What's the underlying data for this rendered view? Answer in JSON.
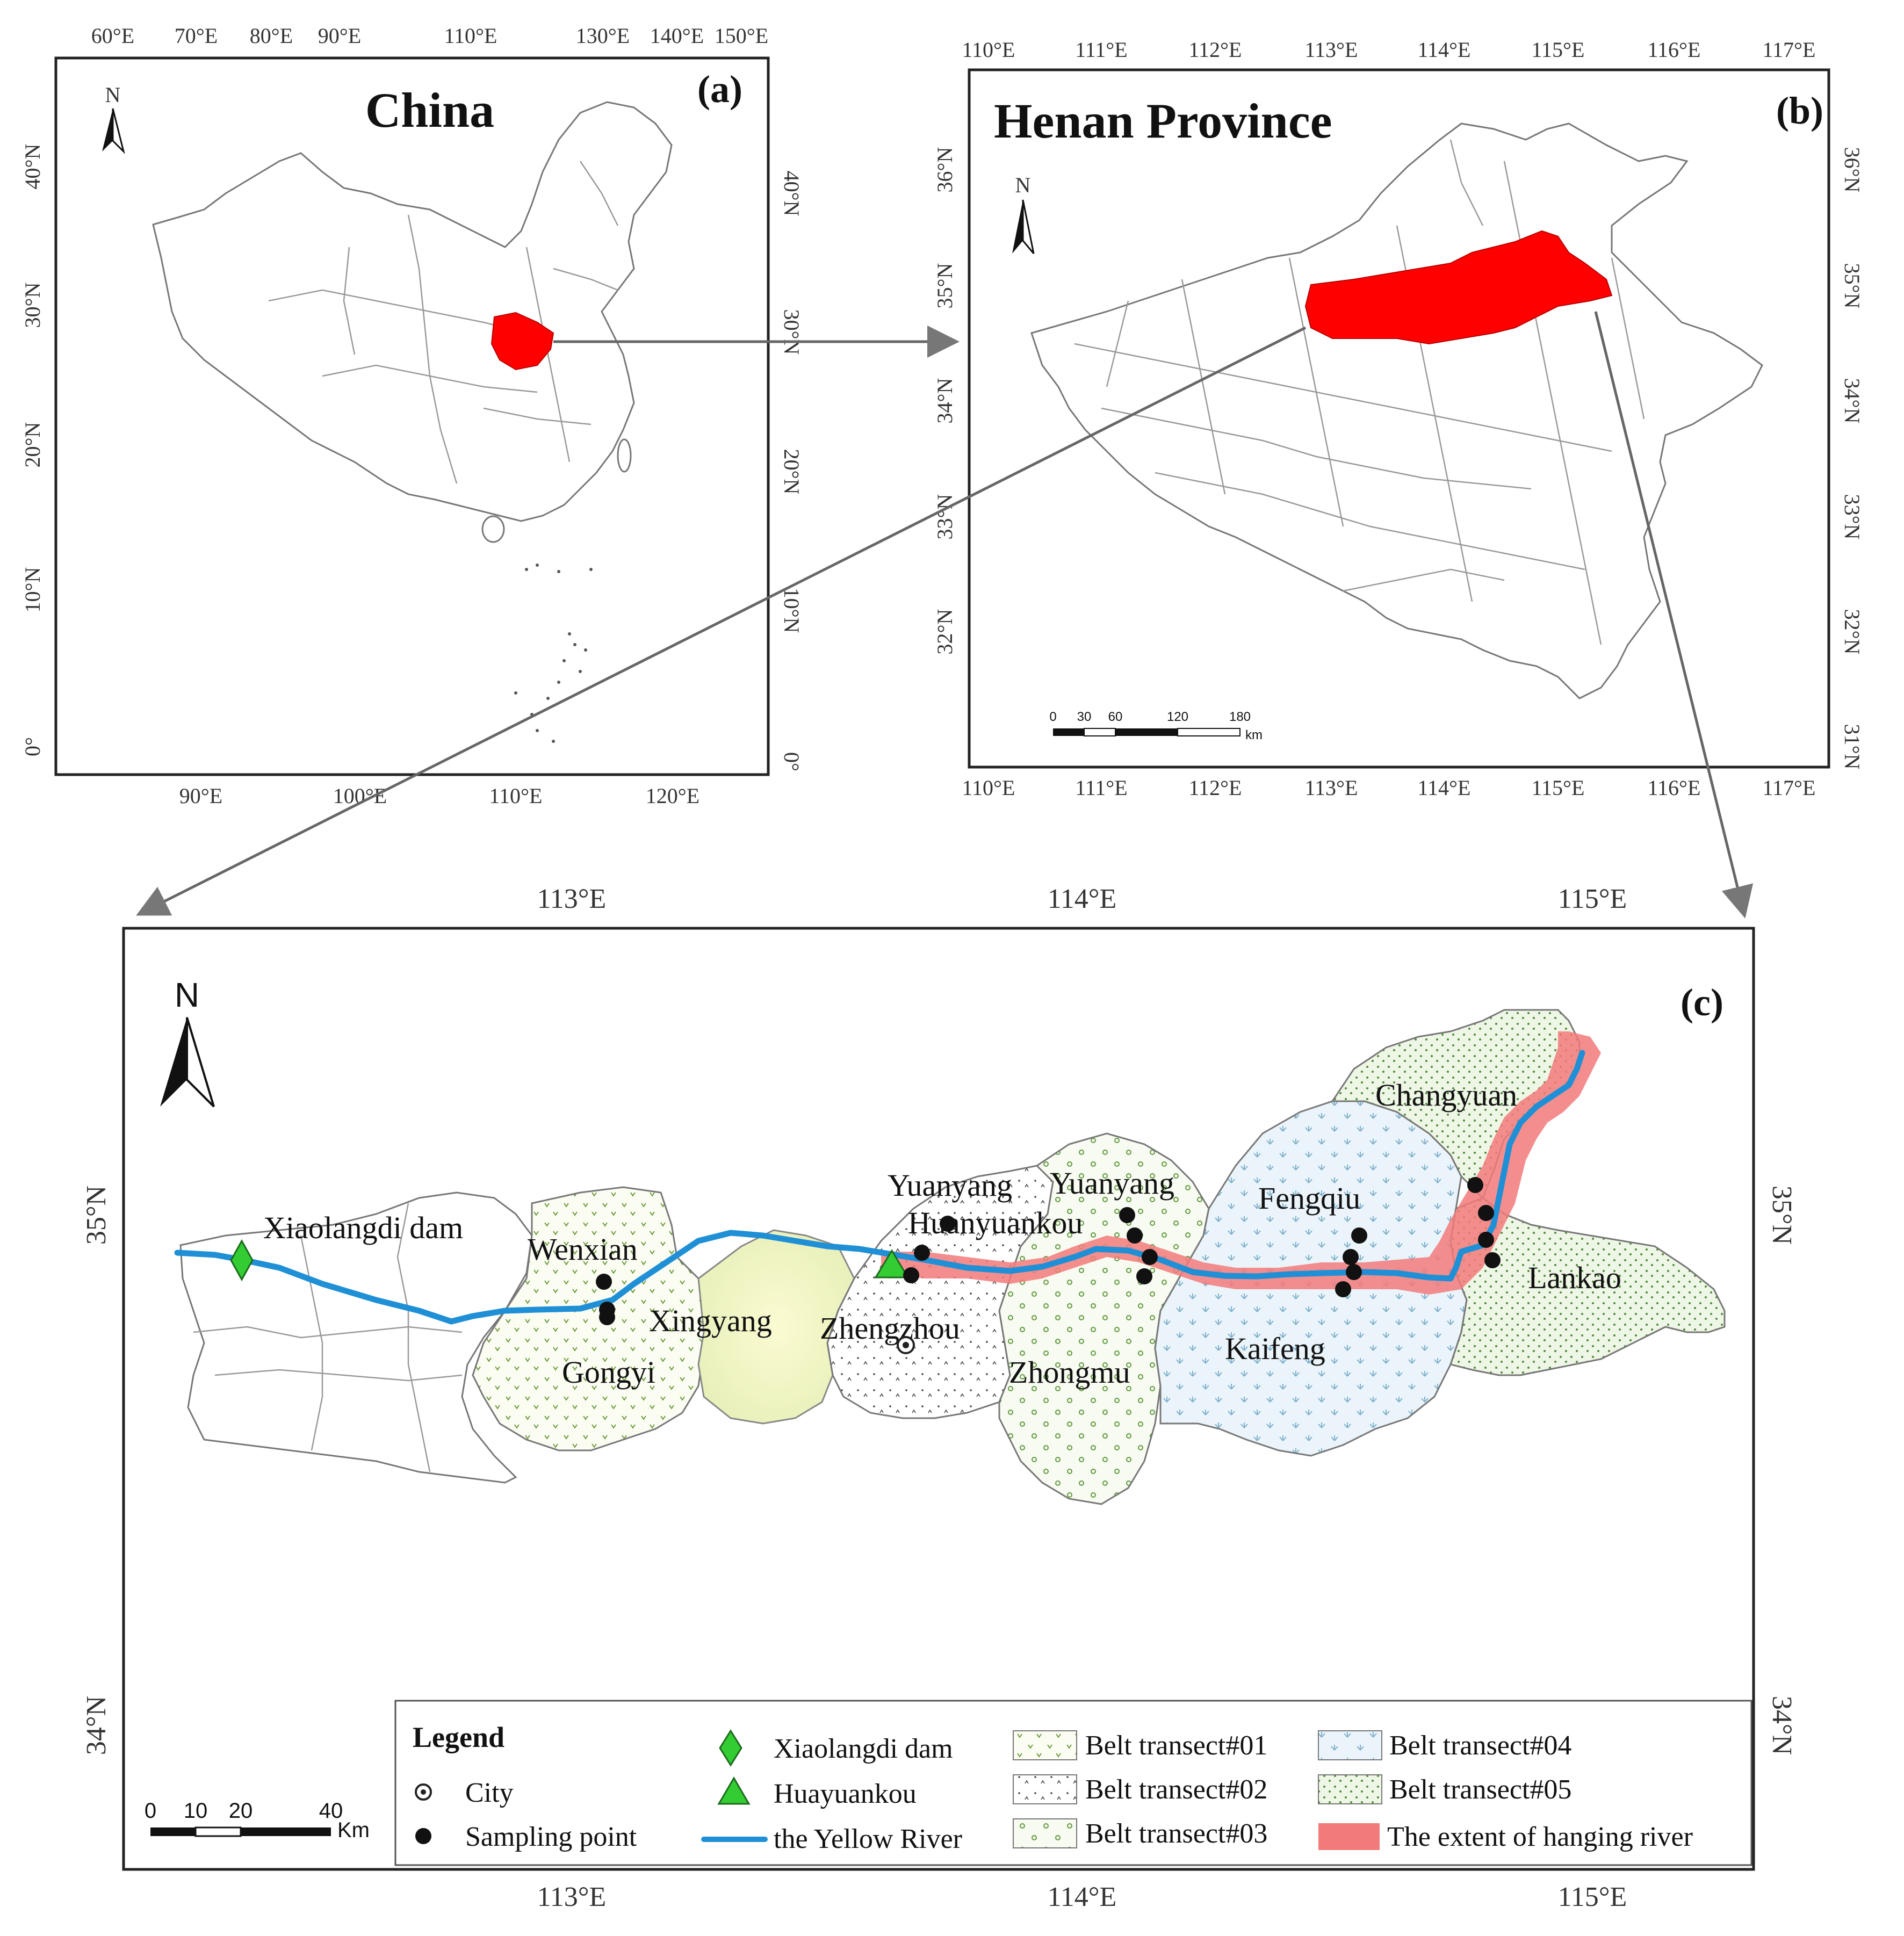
{
  "panels": {
    "a": {
      "letter": "(a)",
      "title": "China",
      "north": "N",
      "top_ticks": [
        "60°E",
        "70°E",
        "80°E",
        "90°E",
        "110°E",
        "130°E",
        "140°E",
        "150°E"
      ],
      "bottom_ticks": [
        "90°E",
        "100°E",
        "110°E",
        "120°E"
      ],
      "left_ticks": [
        "40°N",
        "30°N",
        "20°N",
        "10°N",
        "0°"
      ],
      "right_ticks": [
        "40°N",
        "30°N",
        "20°N",
        "10°N",
        "0°"
      ],
      "highlight_color": "#ff0000"
    },
    "b": {
      "letter": "(b)",
      "title": "Henan Province",
      "north": "N",
      "top_ticks": [
        "110°E",
        "111°E",
        "112°E",
        "113°E",
        "114°E",
        "115°E",
        "116°E",
        "117°E"
      ],
      "bottom_ticks": [
        "110°E",
        "111°E",
        "112°E",
        "113°E",
        "114°E",
        "115°E",
        "116°E",
        "117°E"
      ],
      "left_ticks": [
        "36°N",
        "35°N",
        "34°N",
        "33°N",
        "32°N"
      ],
      "right_ticks": [
        "36°N",
        "35°N",
        "34°N",
        "33°N",
        "32°N",
        "31°N"
      ],
      "scale": {
        "labels": [
          "0",
          "30",
          "60",
          "120",
          "180"
        ],
        "unit": "km"
      },
      "highlight_color": "#ff0000"
    },
    "c": {
      "letter": "(c)",
      "north": "N",
      "top_ticks": [
        "113°E",
        "114°E",
        "115°E"
      ],
      "bottom_ticks": [
        "113°E",
        "114°E",
        "115°E"
      ],
      "left_ticks": [
        "35°N",
        "34°N"
      ],
      "right_ticks": [
        "35°N",
        "34°N"
      ],
      "scale": {
        "labels": [
          "0",
          "10",
          "20",
          "40"
        ],
        "unit": "Km"
      },
      "places": {
        "xiaolangdi": "Xiaolangdi dam",
        "wenxian": "Wenxian",
        "xingyang": "Xingyang",
        "gongyi": "Gongyi",
        "zhengzhou": "Zhengzhou",
        "yuanyang1": "Yuanyang",
        "yuanyang2": "Yuanyang",
        "huayuankou": "Huanyuankou",
        "zhongmu": "Zhongmu",
        "fengqiu": "Fengqiu",
        "kaifeng": "Kaifeng",
        "changyuan": "Changyuan",
        "lankao": "Lankao"
      },
      "legend": {
        "title": "Legend",
        "city": "City",
        "sampling": "Sampling point",
        "dam": "Xiaolangdi dam",
        "huayuankou": "Huayuankou",
        "river": "the Yellow River",
        "belt1": "Belt transect#01",
        "belt2": "Belt transect#02",
        "belt3": "Belt transect#03",
        "belt4": "Belt transect#04",
        "belt5": "Belt transect#05",
        "hanging": "The extent of hanging river"
      },
      "colors": {
        "river": "#1f8fd6",
        "hanging": "#f27a7a",
        "marker_green": "#33cc33"
      }
    }
  }
}
